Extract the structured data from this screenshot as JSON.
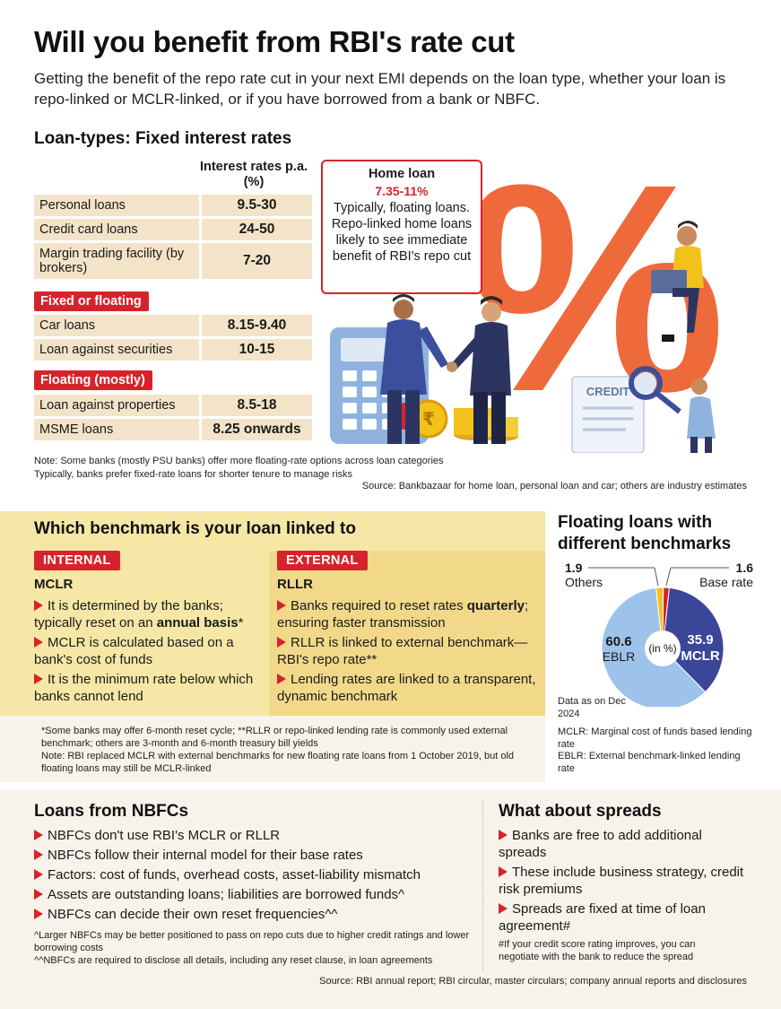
{
  "title": "Will you benefit from RBI's rate cut",
  "intro": "Getting the benefit of the repo rate cut in your next EMI depends on the loan type, whether your loan is repo-linked or MCLR-linked, or if you have borrowed from a bank or NBFC.",
  "loan_types": {
    "heading": "Loan-types: Fixed interest rates",
    "rates_header": "Interest rates p.a. (%)",
    "fixed": [
      {
        "label": "Personal loans",
        "value": "9.5-30"
      },
      {
        "label": "Credit card loans",
        "value": "24-50"
      },
      {
        "label": "Margin trading facility (by brokers)",
        "value": "7-20"
      }
    ],
    "fixed_or_floating_tag": "Fixed or floating",
    "fixed_or_floating": [
      {
        "label": "Car loans",
        "value": "8.15-9.40"
      },
      {
        "label": "Loan against securities",
        "value": "10-15"
      }
    ],
    "floating_tag": "Floating (mostly)",
    "floating": [
      {
        "label": "Loan against properties",
        "value": "8.5-18"
      },
      {
        "label": "MSME loans",
        "value": "8.25 onwards"
      }
    ],
    "note_1": "Note: Some banks (mostly PSU banks) offer more floating-rate options across loan categories",
    "note_2": "Typically, banks prefer fixed-rate loans for shorter tenure to manage risks",
    "source": "Source: Bankbazaar for home loan, personal loan and car; others are industry estimates"
  },
  "home_loan": {
    "title": "Home loan",
    "rate": "7.35-11%",
    "text": "Typically, floating loans. Repo-linked home loans likely to see immediate benefit of RBI's repo cut"
  },
  "illustration": {
    "percent_sign": "%",
    "credit_label": "CREDIT",
    "rupee": "₹"
  },
  "benchmark": {
    "heading": "Which benchmark is your loan linked to",
    "internal": {
      "tag": "INTERNAL",
      "name": "MCLR",
      "p1_pre": "It is determined by the banks; typically reset on an ",
      "p1_bold": "annual basis",
      "p1_post": "*",
      "p2": "MCLR is calculated based on a bank's cost of funds",
      "p3": "It is the minimum rate below which banks cannot lend"
    },
    "external": {
      "tag": "EXTERNAL",
      "name": "RLLR",
      "p1_pre": "Banks required to reset rates ",
      "p1_bold": "quarterly",
      "p1_post": "; ensuring faster transmission",
      "p2": "RLLR is linked to external benchmark—RBI's repo rate**",
      "p3": "Lending rates are linked to a transparent, dynamic benchmark"
    },
    "note_1": "*Some banks may offer 6-month reset cycle; **RLLR or repo-linked lending rate is commonly used external benchmark; others are 3-month and 6-month treasury bill yields",
    "note_2": "Note: RBI replaced MCLR with external benchmarks for new floating rate loans from 1 October 2019, but old floating loans may still be MCLR-linked"
  },
  "chart_data": {
    "type": "pie",
    "title": "Floating loans with different benchmarks",
    "center_label": "(in %)",
    "slices": [
      {
        "name": "MCLR",
        "value": 35.9,
        "color": "#3b4699"
      },
      {
        "name": "EBLR",
        "value": 60.6,
        "color": "#9ec3ea"
      },
      {
        "name": "Others",
        "value": 1.9,
        "color": "#f2c21b"
      },
      {
        "name": "Base rate",
        "value": 1.6,
        "color": "#d6232b"
      }
    ],
    "labels": {
      "mclr_value": "35.9",
      "mclr_name": "MCLR",
      "eblr_value": "60.6",
      "eblr_name": "EBLR",
      "others_value": "1.9",
      "others_name": "Others",
      "base_value": "1.6",
      "base_name": "Base rate"
    },
    "data_as_on": "Data as on Dec 2024",
    "def_mclr": "MCLR: Marginal cost of funds based lending rate",
    "def_eblr": "EBLR: External benchmark-linked lending rate"
  },
  "nbfc": {
    "heading": "Loans from NBFCs",
    "items": [
      "NBFCs don't use RBI's MCLR or RLLR",
      "NBFCs follow their internal model for their base rates",
      "Factors: cost of funds, overhead costs, asset-liability mismatch",
      "Assets are outstanding loans; liabilities are borrowed funds^",
      "NBFCs can decide their own reset frequencies^^"
    ],
    "note_1": "^Larger NBFCs may be better positioned to pass on repo cuts due to higher credit ratings and lower borrowing costs",
    "note_2": "^^NBFCs are required to disclose all details, including any reset clause, in loan agreements"
  },
  "spreads": {
    "heading": "What about spreads",
    "items": [
      "Banks are free to add additional spreads",
      "These include business strategy, credit risk premiums",
      "Spreads are fixed at time of loan agreement#"
    ],
    "note": "#If your credit score rating improves, you can negotiate with the bank to reduce the spread"
  },
  "source_bottom": "Source: RBI annual report; RBI circular, master circulars; company annual reports and disclosures"
}
